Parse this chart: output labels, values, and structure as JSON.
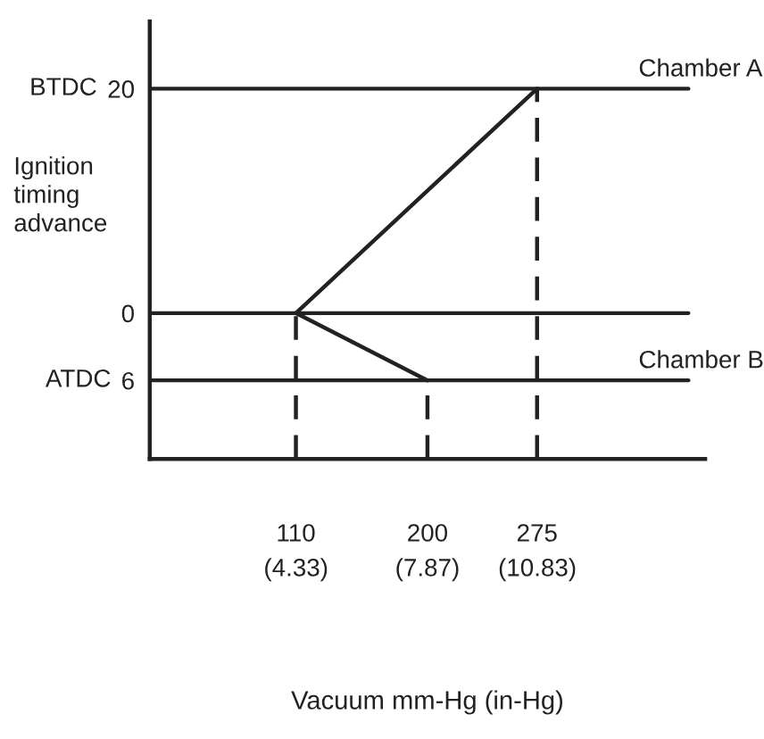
{
  "chart_data": {
    "type": "line",
    "xlabel": "Vacuum mm-Hg (in-Hg)",
    "ylabel": "Ignition timing advance",
    "series": [
      {
        "name": "Chamber A",
        "color": "#222222",
        "x": [
          110,
          275
        ],
        "values": [
          0,
          20
        ]
      },
      {
        "name": "Chamber B",
        "color": "#222222",
        "x": [
          110,
          200
        ],
        "values": [
          0,
          -6
        ]
      }
    ],
    "xlim": [
      10,
      390
    ],
    "xticks": [
      110,
      200,
      275
    ],
    "x2lim": [
      0.39,
      15.35
    ],
    "x2ticks": [
      {
        "value": 4.33,
        "label": "(4.33)"
      },
      {
        "value": 7.87,
        "label": "(7.87)"
      },
      {
        "value": 10.83,
        "label": "(10.83)"
      }
    ],
    "ylim": [
      -13,
      26
    ],
    "yticks": [
      20,
      0,
      {
        "value": -6,
        "label": "6"
      }
    ],
    "annotations": [
      "BTDC",
      "ATDC"
    ],
    "ref_lines": [
      {
        "axis": "y",
        "value": 20,
        "color": "#222222",
        "line_style": "solid"
      },
      {
        "axis": "y",
        "value": 0,
        "color": "#222222",
        "line_style": "solid"
      },
      {
        "axis": "y",
        "value": -6,
        "color": "#222222",
        "line_style": "solid"
      },
      {
        "axis": "x",
        "value": 110,
        "color": "#222222",
        "line_style": "dashed"
      },
      {
        "axis": "x",
        "value": 200,
        "color": "#222222",
        "line_style": "dashed"
      },
      {
        "axis": "x",
        "value": 275,
        "color": "#222222",
        "line_style": "dashed"
      }
    ],
    "grid": false,
    "legend": false,
    "marker": "none",
    "line_style": "solid"
  }
}
